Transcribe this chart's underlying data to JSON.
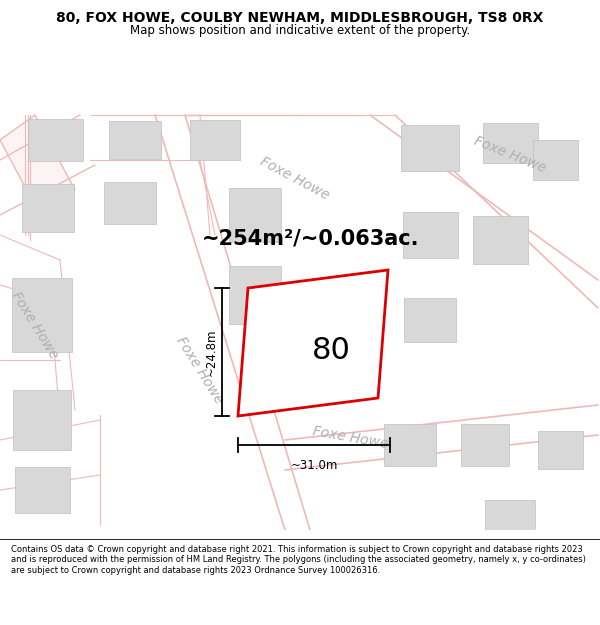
{
  "title": "80, FOX HOWE, COULBY NEWHAM, MIDDLESBROUGH, TS8 0RX",
  "subtitle": "Map shows position and indicative extent of the property.",
  "footer": "Contains OS data © Crown copyright and database right 2021. This information is subject to Crown copyright and database rights 2023 and is reproduced with the permission of HM Land Registry. The polygons (including the associated geometry, namely x, y co-ordinates) are subject to Crown copyright and database rights 2023 Ordnance Survey 100026316.",
  "area_label": "~254m²/~0.063ac.",
  "width_label": "~31.0m",
  "height_label": "~24.8m",
  "plot_number": "80",
  "bg_color": "#ffffff",
  "road_line_color": "#f0b8b8",
  "building_color": "#d8d8d8",
  "building_edge_color": "#c0c0c0",
  "plot_outline_color": "#dd0000",
  "road_label_color": "#b0b0b0",
  "dim_line_color": "#000000"
}
